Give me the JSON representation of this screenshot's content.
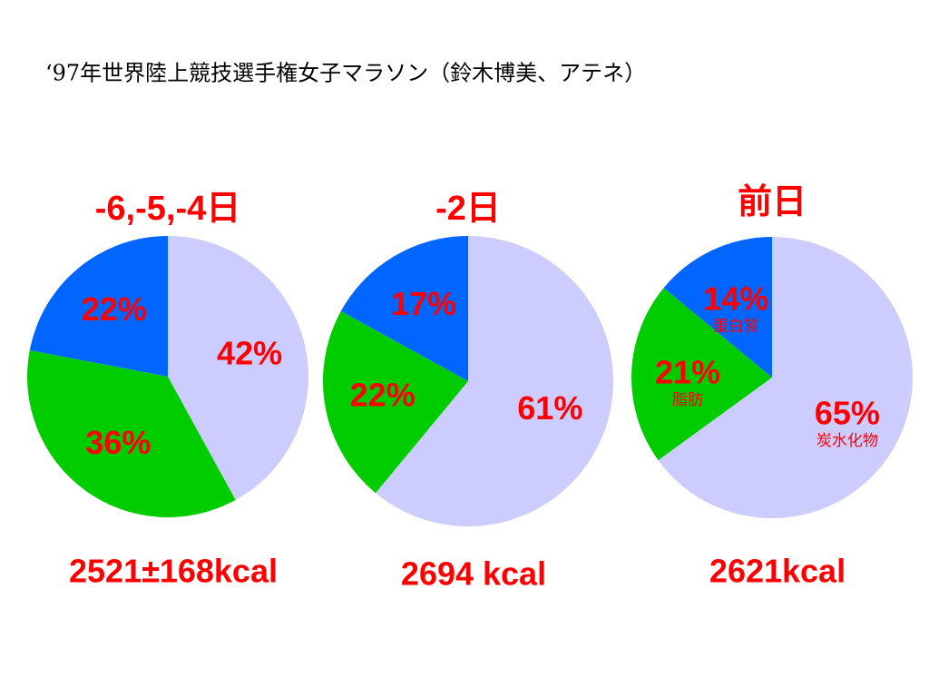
{
  "title": "‘97年世界陸上競技選手権女子マラソン（鈴木博美、アテネ）",
  "chart_data": [
    {
      "type": "pie",
      "title": "-6,-5,-4日",
      "caption": "2521±168kcal",
      "values": [
        42,
        36,
        22
      ],
      "value_labels": [
        "42%",
        "36%",
        "22%"
      ],
      "colors": [
        "#ccccff",
        "#00cc00",
        "#0066ff"
      ]
    },
    {
      "type": "pie",
      "title": "-2日",
      "caption": "2694 kcal",
      "values": [
        61,
        22,
        17
      ],
      "value_labels": [
        "61%",
        "22%",
        "17%"
      ],
      "colors": [
        "#ccccff",
        "#00cc00",
        "#0066ff"
      ]
    },
    {
      "type": "pie",
      "title": "前日",
      "caption": "2621kcal",
      "categories": [
        "炭水化物",
        "脂肪",
        "蛋白質"
      ],
      "values": [
        65,
        21,
        14
      ],
      "value_labels": [
        "65%",
        "21%",
        "14%"
      ],
      "colors": [
        "#ccccff",
        "#00cc00",
        "#0066ff"
      ]
    }
  ]
}
